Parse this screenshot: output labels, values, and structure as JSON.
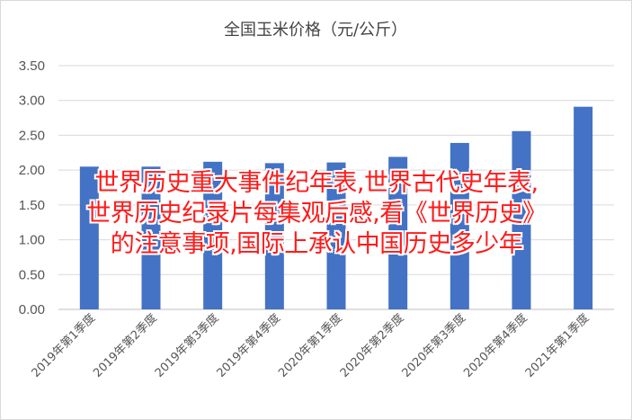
{
  "chart_data": {
    "type": "bar",
    "title": "全国玉米价格（元/公斤）",
    "categories": [
      "2019年第1季度",
      "2019年第2季度",
      "2019年第3季度",
      "2019年第4季度",
      "2020年第1季度",
      "2020年第2季度",
      "2020年第3季度",
      "2020年第4季度",
      "2021年第1季度"
    ],
    "values": [
      2.05,
      2.05,
      2.12,
      2.1,
      2.11,
      2.19,
      2.39,
      2.56,
      2.91
    ],
    "ylim": [
      0,
      3.5
    ],
    "yticks": [
      "0.00",
      "0.50",
      "1.00",
      "1.50",
      "2.00",
      "2.50",
      "3.00",
      "3.50"
    ],
    "grid": true,
    "bar_color": "#4472c4",
    "xlabel": "",
    "ylabel": ""
  },
  "overlay": {
    "lines": [
      "世界历史重大事件纪年表,世界古代史年表,",
      "世界历史纪录片每集观后感,看《世界历史》",
      "的注意事项,国际上承认中国历史多少年"
    ],
    "color": "#ff1a1a"
  }
}
